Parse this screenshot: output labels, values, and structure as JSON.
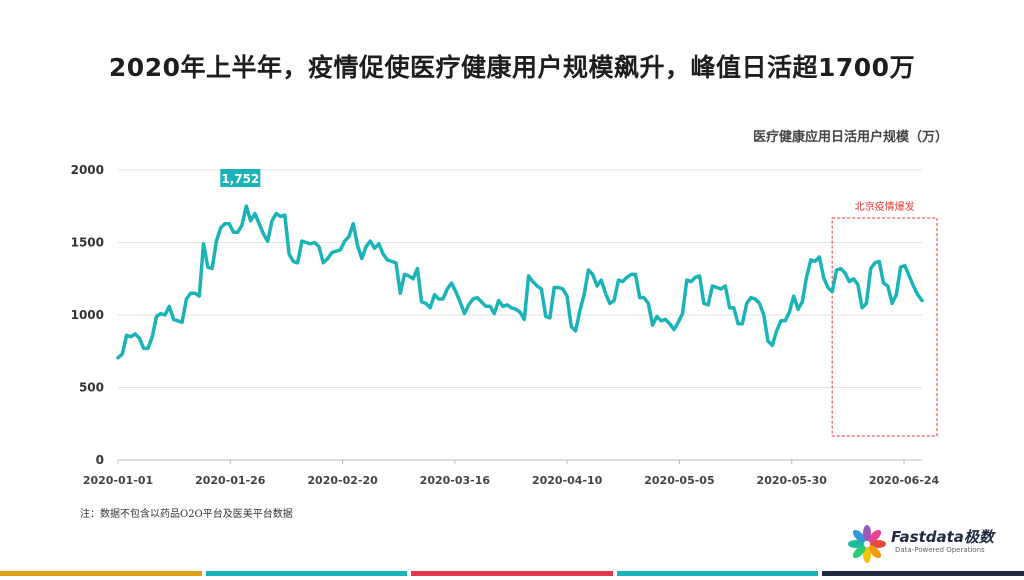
{
  "header": {
    "title": "2020年上半年，疫情促使医疗健康用户规模飙升，峰值日活超1700万"
  },
  "chart_data": {
    "type": "line",
    "title": "",
    "legend_label": "医疗健康应用日活用户规模（万）",
    "xlabel": "",
    "ylabel": "",
    "ylim": [
      0,
      2000
    ],
    "y_ticks": [
      "0",
      "500",
      "1000",
      "1500",
      "2000"
    ],
    "x_tick_labels": [
      "2020-01-01",
      "2020-01-26",
      "2020-02-20",
      "2020-03-16",
      "2020-04-10",
      "2020-05-05",
      "2020-05-30",
      "2020-06-24"
    ],
    "x_start": "2020-01-01",
    "x_end": "2020-06-28",
    "grid": "horizontal",
    "line_color": "#1ab4b8",
    "series": [
      {
        "name": "医疗健康应用日活用户规模（万）",
        "values": [
          705,
          730,
          860,
          850,
          870,
          840,
          770,
          770,
          850,
          990,
          1010,
          1000,
          1060,
          970,
          960,
          950,
          1110,
          1150,
          1150,
          1130,
          1490,
          1330,
          1320,
          1510,
          1600,
          1630,
          1630,
          1570,
          1570,
          1620,
          1752,
          1650,
          1700,
          1630,
          1560,
          1510,
          1650,
          1700,
          1680,
          1690,
          1420,
          1370,
          1360,
          1510,
          1500,
          1490,
          1500,
          1470,
          1360,
          1390,
          1430,
          1440,
          1450,
          1510,
          1540,
          1630,
          1480,
          1390,
          1470,
          1510,
          1460,
          1490,
          1420,
          1380,
          1370,
          1360,
          1150,
          1280,
          1270,
          1250,
          1320,
          1090,
          1080,
          1050,
          1140,
          1110,
          1110,
          1180,
          1220,
          1160,
          1090,
          1010,
          1070,
          1110,
          1120,
          1090,
          1060,
          1060,
          1010,
          1100,
          1060,
          1070,
          1050,
          1040,
          1020,
          970,
          1270,
          1230,
          1200,
          1180,
          990,
          980,
          1190,
          1190,
          1180,
          1130,
          920,
          890,
          1030,
          1140,
          1310,
          1280,
          1200,
          1240,
          1150,
          1080,
          1100,
          1240,
          1230,
          1260,
          1280,
          1280,
          1120,
          1120,
          1080,
          930,
          990,
          960,
          970,
          940,
          900,
          950,
          1010,
          1240,
          1230,
          1260,
          1270,
          1080,
          1070,
          1200,
          1190,
          1180,
          1200,
          1050,
          1050,
          940,
          940,
          1080,
          1120,
          1110,
          1080,
          1000,
          820,
          790,
          890,
          960,
          960,
          1020,
          1130,
          1040,
          1090,
          1260,
          1380,
          1370,
          1400,
          1260,
          1190,
          1160,
          1310,
          1320,
          1290,
          1230,
          1250,
          1210,
          1050,
          1080,
          1320,
          1360,
          1370,
          1220,
          1200,
          1080,
          1140,
          1330,
          1340,
          1270,
          1200,
          1140,
          1100
        ]
      }
    ],
    "peak_label": "1,752",
    "peak_value": 1752,
    "peak_date": "2020-01-31",
    "annotation_label": "北京疫情爆发",
    "annotation_start": "2020-06-08",
    "annotation_end": "2020-06-28",
    "annotation_color": "#e53935"
  },
  "footnote": "注：数据不包含以药品O2O平台及医美平台数据",
  "logo": {
    "name": "Fastdata极数",
    "tagline": "Data-Powered Operations",
    "petal_colors": [
      "#e94c3d",
      "#f39c12",
      "#f1c40f",
      "#2ecc71",
      "#1abc9c",
      "#3498db",
      "#9b59b6",
      "#e84393"
    ]
  },
  "bottom_bar_colors": [
    "#e0a11b",
    "#1ab4b8",
    "#e53950",
    "#1ab4b8",
    "#1f2a44"
  ]
}
